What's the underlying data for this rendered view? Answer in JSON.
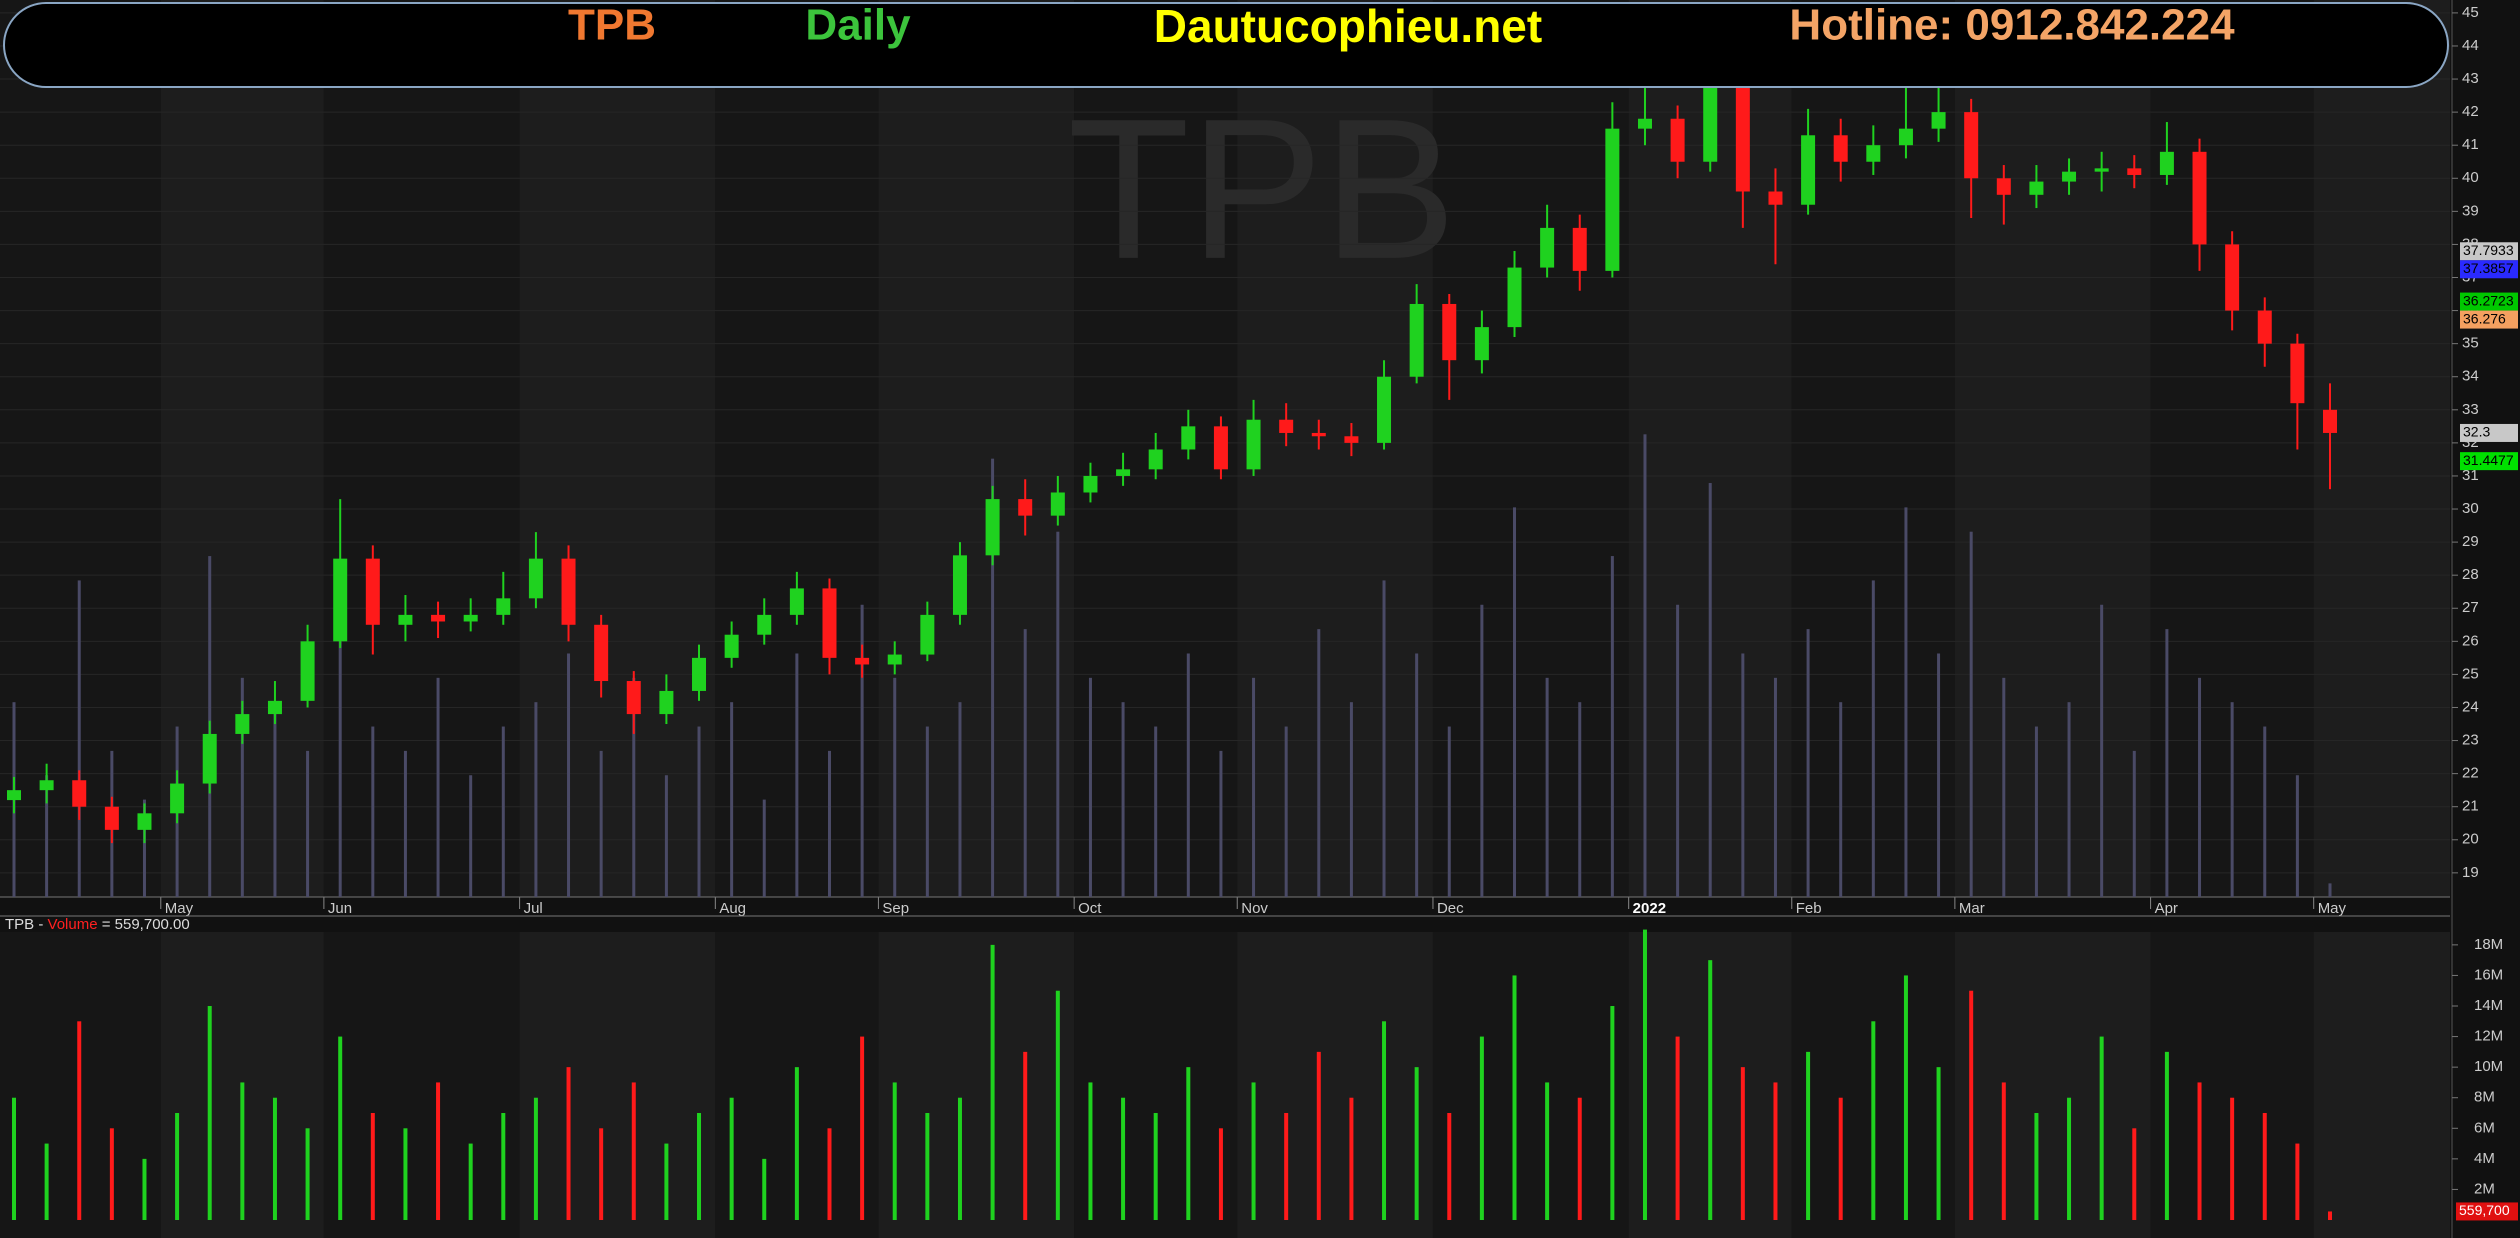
{
  "header": {
    "ticker": "TPB",
    "ticker_color": "#f07830",
    "interval": "Daily",
    "interval_color": "#3cc43c",
    "site": "Dautucophieu.net",
    "site_color": "#ffff00",
    "hotline": "Hotline: 0912.842.224",
    "hotline_color": "#f4a466"
  },
  "chart_data": [
    {
      "type": "candlestick",
      "watermark": "TPB",
      "categories": [
        null,
        null,
        null,
        null,
        null,
        "May",
        null,
        null,
        null,
        null,
        "Jun",
        null,
        null,
        null,
        null,
        null,
        "Jul",
        null,
        null,
        null,
        null,
        null,
        "Aug",
        null,
        null,
        null,
        null,
        "Sep",
        null,
        null,
        null,
        null,
        null,
        "Oct",
        null,
        null,
        null,
        null,
        "Nov",
        null,
        null,
        null,
        null,
        null,
        "Dec",
        null,
        null,
        null,
        null,
        null,
        "2022",
        null,
        null,
        null,
        null,
        "Feb",
        null,
        null,
        null,
        null,
        "Mar",
        null,
        null,
        null,
        null,
        null,
        "Apr",
        null,
        null,
        null,
        null,
        "May"
      ],
      "open": [
        21.2,
        21.5,
        21.8,
        21,
        20.3,
        20.8,
        21.7,
        23.2,
        23.8,
        24.2,
        26,
        28.5,
        26.5,
        26.8,
        26.6,
        26.8,
        27.3,
        28.5,
        26.5,
        24.8,
        23.8,
        24.5,
        25.5,
        26.2,
        26.8,
        27.6,
        25.5,
        25.3,
        25.6,
        26.8,
        28.6,
        30.3,
        29.8,
        30.5,
        31,
        31.2,
        31.8,
        32.5,
        31.2,
        32.7,
        32.3,
        32.2,
        32,
        34,
        36.2,
        34.5,
        35.5,
        37.3,
        38.5,
        37.2,
        41.5,
        41.8,
        40.5,
        42.8,
        39.6,
        39.2,
        41.3,
        40.5,
        41,
        41.5,
        42,
        40,
        39.5,
        39.9,
        40.2,
        40.3,
        40.1,
        40.8,
        38,
        36,
        35,
        33
      ],
      "high": [
        21.9,
        22.3,
        22.1,
        21.3,
        21.1,
        22.1,
        23.6,
        24.2,
        24.8,
        26.5,
        30.3,
        28.9,
        27.4,
        27.2,
        27.3,
        28.1,
        29.3,
        28.9,
        26.8,
        25.1,
        25,
        25.9,
        26.6,
        27.3,
        28.1,
        27.9,
        25.9,
        26,
        27.2,
        29,
        30.7,
        30.9,
        31,
        31.4,
        31.7,
        32.3,
        33,
        32.8,
        33.3,
        33.2,
        32.7,
        32.6,
        34.5,
        36.8,
        36.5,
        36,
        37.8,
        39.2,
        38.9,
        42.3,
        43.4,
        42.2,
        43.9,
        43.1,
        40.3,
        42.1,
        41.8,
        41.6,
        43.2,
        43.3,
        42.4,
        40.4,
        40.4,
        40.6,
        40.8,
        40.7,
        41.7,
        41.2,
        38.4,
        36.4,
        35.3,
        33.8
      ],
      "low": [
        20.8,
        21.1,
        20.6,
        19.9,
        19.9,
        20.5,
        21.4,
        22.9,
        23.5,
        24,
        25.8,
        25.6,
        26,
        26.1,
        26.3,
        26.5,
        27,
        26,
        24.3,
        23.2,
        23.5,
        24.2,
        25.2,
        25.9,
        26.5,
        25,
        24.9,
        25,
        25.4,
        26.5,
        28.3,
        29.2,
        29.5,
        30.2,
        30.7,
        30.9,
        31.5,
        30.9,
        31,
        31.9,
        31.8,
        31.6,
        31.8,
        33.8,
        33.3,
        34.1,
        35.2,
        37,
        36.6,
        37,
        41,
        40,
        40.2,
        38.5,
        37.4,
        38.9,
        39.9,
        40.1,
        40.6,
        41.1,
        38.8,
        38.6,
        39.1,
        39.5,
        39.6,
        39.7,
        39.8,
        37.2,
        35.4,
        34.3,
        31.8,
        30.6
      ],
      "close": [
        21.5,
        21.8,
        21,
        20.3,
        20.8,
        21.7,
        23.2,
        23.8,
        24.2,
        26,
        28.5,
        26.5,
        26.8,
        26.6,
        26.8,
        27.3,
        28.5,
        26.5,
        24.8,
        23.8,
        24.5,
        25.5,
        26.2,
        26.8,
        27.6,
        25.5,
        25.3,
        25.6,
        26.8,
        28.6,
        30.3,
        29.8,
        30.5,
        31,
        31.2,
        31.8,
        32.5,
        31.2,
        32.7,
        32.3,
        32.2,
        32,
        34,
        36.2,
        34.5,
        35.5,
        37.3,
        38.5,
        37.2,
        41.5,
        41.8,
        40.5,
        42.8,
        39.6,
        39.2,
        41.3,
        40.5,
        41,
        41.5,
        42,
        40,
        39.5,
        39.9,
        40.2,
        40.3,
        40.1,
        40.8,
        38,
        36,
        35,
        33.2,
        32.3
      ],
      "up_color": "#1fd21f",
      "down_color": "#ff1a1a",
      "ylim": [
        18.27,
        45.39
      ],
      "yticks": [
        19,
        20,
        21,
        22,
        23,
        24,
        25,
        26,
        27,
        28,
        29,
        30,
        31,
        32,
        33,
        34,
        35,
        36,
        37,
        38,
        39,
        40,
        41,
        42,
        43,
        44,
        45
      ],
      "grid": true,
      "price_labels": [
        {
          "value": 37.7933,
          "color": "#c8c8c8"
        },
        {
          "value": 37.3857,
          "color": "#2a2aff"
        },
        {
          "value": 36.2723,
          "color": "#00c800"
        },
        {
          "value": 36.276,
          "color": "#f4a060"
        },
        {
          "value": 32.3,
          "color": "#c8c8c8"
        },
        {
          "value": 31.4477,
          "color": "#00e000"
        }
      ]
    },
    {
      "type": "bar",
      "legend_parts": [
        "TPB - ",
        "Volume",
        " = 559,700.00"
      ],
      "values": [
        8000000,
        5000000,
        13000000,
        6000000,
        4000000,
        7000000,
        14000000,
        9000000,
        8000000,
        6000000,
        12000000,
        7000000,
        6000000,
        9000000,
        5000000,
        7000000,
        8000000,
        10000000,
        6000000,
        9000000,
        5000000,
        7000000,
        8000000,
        4000000,
        10000000,
        6000000,
        12000000,
        9000000,
        7000000,
        8000000,
        18000000,
        11000000,
        15000000,
        9000000,
        8000000,
        7000000,
        10000000,
        6000000,
        9000000,
        7000000,
        11000000,
        8000000,
        13000000,
        10000000,
        7000000,
        12000000,
        16000000,
        9000000,
        8000000,
        14000000,
        19000000,
        12000000,
        17000000,
        10000000,
        9000000,
        11000000,
        8000000,
        13000000,
        16000000,
        10000000,
        15000000,
        9000000,
        7000000,
        8000000,
        12000000,
        6000000,
        11000000,
        9000000,
        8000000,
        7000000,
        5000000,
        559700
      ],
      "last_label": "559,700",
      "ylim": [
        0,
        19300000
      ],
      "yticks": [
        {
          "value": 2000000,
          "label": "2M"
        },
        {
          "value": 4000000,
          "label": "4M"
        },
        {
          "value": 6000000,
          "label": "6M"
        },
        {
          "value": 8000000,
          "label": "8M"
        },
        {
          "value": 10000000,
          "label": "10M"
        },
        {
          "value": 12000000,
          "label": "12M"
        },
        {
          "value": 14000000,
          "label": "14M"
        },
        {
          "value": 16000000,
          "label": "16M"
        },
        {
          "value": 18000000,
          "label": "18M"
        }
      ]
    }
  ]
}
